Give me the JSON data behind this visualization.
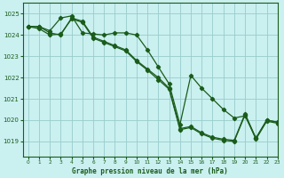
{
  "title": "Graphe pression niveau de la mer (hPa)",
  "background_color": "#caf0f0",
  "grid_color": "#99cccc",
  "line_color": "#1a5c1a",
  "xlim": [
    -0.5,
    23
  ],
  "ylim": [
    1018.3,
    1025.5
  ],
  "yticks": [
    1019,
    1020,
    1021,
    1022,
    1023,
    1024,
    1025
  ],
  "xticks": [
    0,
    1,
    2,
    3,
    4,
    5,
    6,
    7,
    8,
    9,
    10,
    11,
    12,
    13,
    14,
    15,
    16,
    17,
    18,
    19,
    20,
    21,
    22,
    23
  ],
  "series1": [
    1024.4,
    1024.4,
    1024.2,
    1024.8,
    1024.9,
    1024.1,
    1024.05,
    1024.0,
    1024.1,
    1024.1,
    1024.0,
    1023.3,
    1022.5,
    1021.7,
    1019.8,
    1022.1,
    1021.5,
    1021.0,
    1020.5,
    1020.1,
    1020.2,
    1019.15,
    1020.0,
    1019.9
  ],
  "series2": [
    1024.4,
    1024.4,
    1024.1,
    1024.0,
    1024.8,
    1024.65,
    1023.9,
    1023.7,
    1023.5,
    1023.3,
    1022.8,
    1022.4,
    1022.0,
    1021.5,
    1019.6,
    1019.7,
    1019.4,
    1019.2,
    1019.1,
    1019.05,
    1020.3,
    1019.15,
    1020.0,
    1019.9
  ],
  "series3": [
    1024.4,
    1024.3,
    1024.0,
    1024.05,
    1024.75,
    1024.6,
    1023.85,
    1023.65,
    1023.45,
    1023.25,
    1022.75,
    1022.35,
    1021.9,
    1021.45,
    1019.55,
    1019.65,
    1019.35,
    1019.15,
    1019.05,
    1019.0,
    1020.25,
    1019.1,
    1019.95,
    1019.85
  ]
}
